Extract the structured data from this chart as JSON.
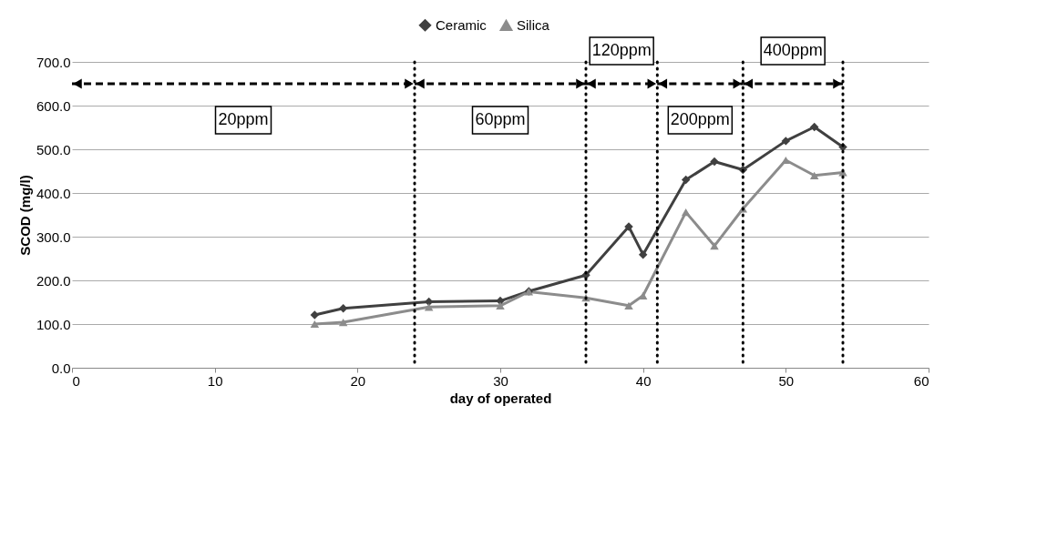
{
  "chart_data": {
    "type": "line",
    "xlabel": "day of operated",
    "ylabel": "SCOD (mg/l)",
    "x": [
      17,
      19,
      25,
      30,
      32,
      36,
      39,
      40,
      43,
      45,
      47,
      50,
      52,
      54
    ],
    "series": [
      {
        "name": "Ceramic",
        "color": "#404040",
        "marker": "diamond",
        "values": [
          121,
          136,
          151,
          153,
          175,
          212,
          323,
          259,
          430,
          472,
          453,
          519,
          551,
          505
        ]
      },
      {
        "name": "Silica",
        "color": "#8c8c8c",
        "marker": "triangle",
        "values": [
          100,
          104,
          139,
          142,
          174,
          160,
          142,
          165,
          356,
          279,
          364,
          475,
          440,
          447
        ]
      }
    ],
    "xlim": [
      0,
      60
    ],
    "xticks": [
      0,
      10,
      20,
      30,
      40,
      50,
      60
    ],
    "ylim": [
      0,
      700
    ],
    "yticks": [
      {
        "value": 0,
        "label": "0.0"
      },
      {
        "value": 100,
        "label": "100.0"
      },
      {
        "value": 200,
        "label": "200.0"
      },
      {
        "value": 300,
        "label": "300.0"
      },
      {
        "value": 400,
        "label": "400.0"
      },
      {
        "value": 500,
        "label": "500.0"
      },
      {
        "value": 600,
        "label": "600.0"
      },
      {
        "value": 700,
        "label": "700.0"
      }
    ],
    "grid": "y",
    "legend": "top",
    "line_style": "solid",
    "ref_lines": [
      {
        "axis": "x",
        "value": 24,
        "line_style": "dotted",
        "color": "#000000"
      },
      {
        "axis": "x",
        "value": 36,
        "line_style": "dotted",
        "color": "#000000"
      },
      {
        "axis": "x",
        "value": 41,
        "line_style": "dotted",
        "color": "#000000"
      },
      {
        "axis": "x",
        "value": 47,
        "line_style": "dotted",
        "color": "#000000"
      },
      {
        "axis": "x",
        "value": 54,
        "line_style": "dotted",
        "color": "#000000"
      }
    ],
    "annotations": [
      "20ppm",
      "60ppm",
      "120ppm",
      "200ppm",
      "400ppm"
    ]
  }
}
